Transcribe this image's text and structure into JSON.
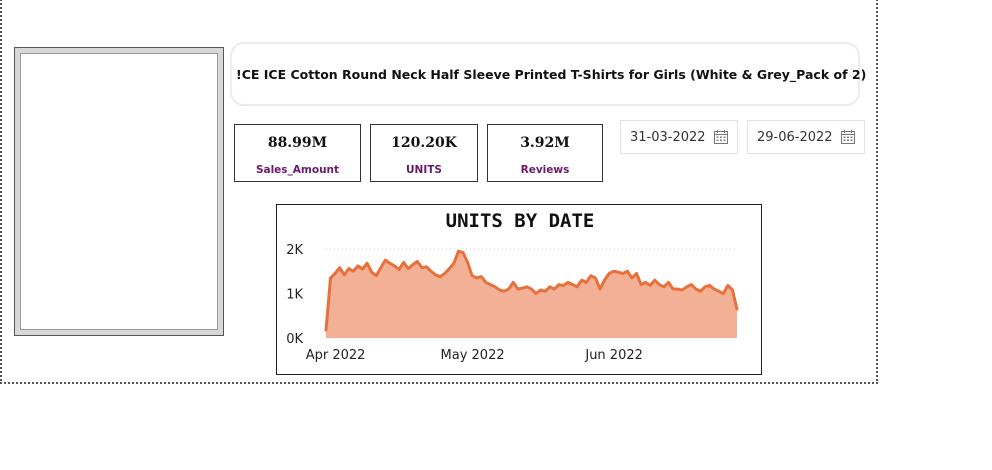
{
  "product": {
    "title": "!CE ICE Cotton Round Neck Half Sleeve Printed T-Shirts for Girls (White & Grey_Pack of 2)"
  },
  "kpis": [
    {
      "value": "88.99M",
      "label": "Sales_Amount"
    },
    {
      "value": "120.20K",
      "label": "UNITS"
    },
    {
      "value": "3.92M",
      "label": "Reviews"
    }
  ],
  "date_range": {
    "start": "31-03-2022",
    "end": "29-06-2022",
    "icon": "calendar-icon"
  },
  "colors": {
    "kpi_label": "#6b1a6b",
    "chart_line": "#e8703a",
    "chart_fill": "#f2b196"
  },
  "chart_data": {
    "type": "area",
    "title": "UNITS BY DATE",
    "xlabel": "",
    "ylabel": "",
    "x_ticks": [
      "Apr 2022",
      "May 2022",
      "Jun 2022"
    ],
    "y_ticks": [
      "2K",
      "1K",
      "0K"
    ],
    "ylim": [
      0,
      2000
    ],
    "xlim": [
      "2022-03-31",
      "2022-06-29"
    ],
    "grid": true,
    "series": [
      {
        "x": [
          "2022-03-31",
          "2022-04-01",
          "2022-04-02",
          "2022-04-03",
          "2022-04-04",
          "2022-04-05",
          "2022-04-06",
          "2022-04-07",
          "2022-04-08",
          "2022-04-09",
          "2022-04-10",
          "2022-04-11",
          "2022-04-12",
          "2022-04-13",
          "2022-04-14",
          "2022-04-15",
          "2022-04-16",
          "2022-04-17",
          "2022-04-18",
          "2022-04-19",
          "2022-04-20",
          "2022-04-21",
          "2022-04-22",
          "2022-04-23",
          "2022-04-24",
          "2022-04-25",
          "2022-04-26",
          "2022-04-27",
          "2022-04-28",
          "2022-04-29",
          "2022-04-30",
          "2022-05-01",
          "2022-05-02",
          "2022-05-03",
          "2022-05-04",
          "2022-05-05",
          "2022-05-06",
          "2022-05-07",
          "2022-05-08",
          "2022-05-09",
          "2022-05-10",
          "2022-05-11",
          "2022-05-12",
          "2022-05-13",
          "2022-05-14",
          "2022-05-15",
          "2022-05-16",
          "2022-05-17",
          "2022-05-18",
          "2022-05-19",
          "2022-05-20",
          "2022-05-21",
          "2022-05-22",
          "2022-05-23",
          "2022-05-24",
          "2022-05-25",
          "2022-05-26",
          "2022-05-27",
          "2022-05-28",
          "2022-05-29",
          "2022-05-30",
          "2022-05-31",
          "2022-06-01",
          "2022-06-02",
          "2022-06-03",
          "2022-06-04",
          "2022-06-05",
          "2022-06-06",
          "2022-06-07",
          "2022-06-08",
          "2022-06-09",
          "2022-06-10",
          "2022-06-11",
          "2022-06-12",
          "2022-06-13",
          "2022-06-14",
          "2022-06-15",
          "2022-06-16",
          "2022-06-17",
          "2022-06-18",
          "2022-06-19",
          "2022-06-20",
          "2022-06-21",
          "2022-06-22",
          "2022-06-23",
          "2022-06-24",
          "2022-06-25",
          "2022-06-26",
          "2022-06-27",
          "2022-06-28",
          "2022-06-29"
        ],
        "values": [
          180,
          1350,
          1450,
          1580,
          1420,
          1560,
          1500,
          1620,
          1550,
          1680,
          1480,
          1400,
          1580,
          1750,
          1680,
          1620,
          1540,
          1700,
          1560,
          1650,
          1720,
          1580,
          1600,
          1500,
          1420,
          1380,
          1450,
          1560,
          1680,
          1950,
          1920,
          1700,
          1400,
          1350,
          1380,
          1250,
          1200,
          1150,
          1080,
          1050,
          1100,
          1250,
          1100,
          1120,
          1150,
          1100,
          1000,
          1080,
          1050,
          1150,
          1100,
          1200,
          1180,
          1250,
          1200,
          1150,
          1300,
          1250,
          1400,
          1350,
          1100,
          1300,
          1450,
          1500,
          1480,
          1450,
          1500,
          1350,
          1450,
          1200,
          1250,
          1180,
          1300,
          1200,
          1150,
          1250,
          1100,
          1100,
          1080,
          1150,
          1200,
          1100,
          1050,
          1150,
          1180,
          1100,
          1050,
          1000,
          1180,
          1080,
          650
        ]
      }
    ]
  }
}
